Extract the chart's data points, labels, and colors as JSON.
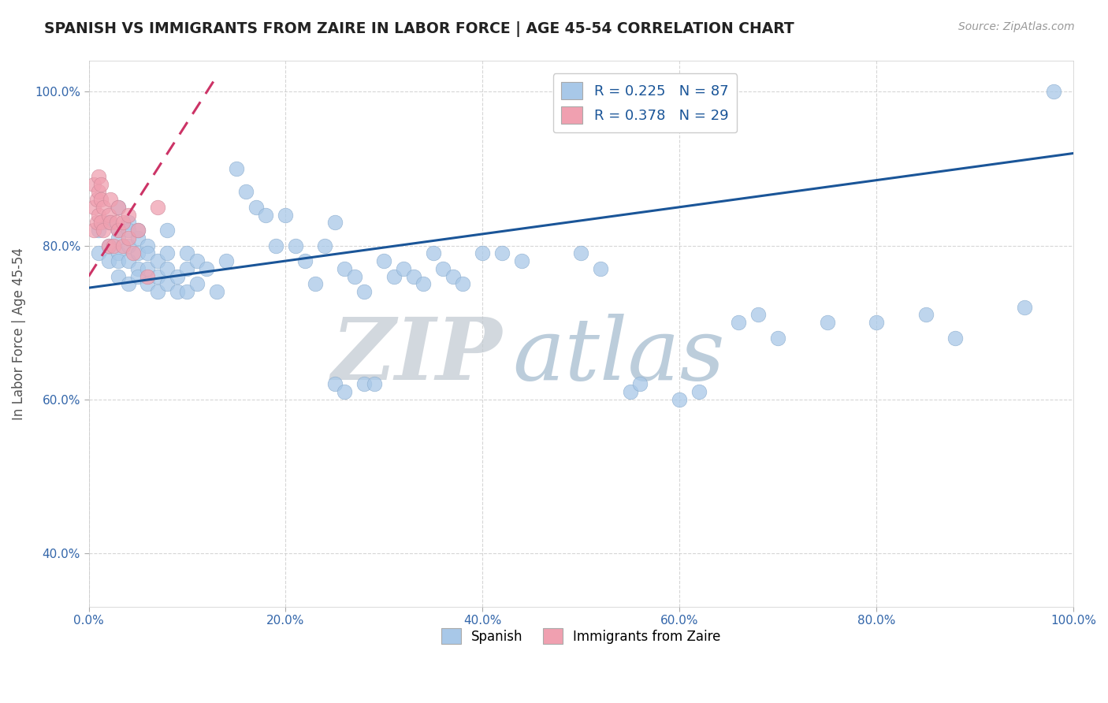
{
  "title": "SPANISH VS IMMIGRANTS FROM ZAIRE IN LABOR FORCE | AGE 45-54 CORRELATION CHART",
  "source": "Source: ZipAtlas.com",
  "ylabel": "In Labor Force | Age 45-54",
  "xlim": [
    0,
    1
  ],
  "ylim": [
    0.33,
    1.04
  ],
  "xticks": [
    0.0,
    0.2,
    0.4,
    0.6,
    0.8,
    1.0
  ],
  "yticks": [
    0.4,
    0.6,
    0.8,
    1.0
  ],
  "xtick_labels": [
    "0.0%",
    "20.0%",
    "40.0%",
    "60.0%",
    "80.0%",
    "100.0%"
  ],
  "ytick_labels": [
    "40.0%",
    "60.0%",
    "80.0%",
    "100.0%"
  ],
  "r_blue": 0.225,
  "n_blue": 87,
  "r_pink": 0.378,
  "n_pink": 29,
  "blue_color": "#a8c8e8",
  "pink_color": "#f0a0b0",
  "trend_blue_color": "#1a5598",
  "trend_pink_color": "#cc3366",
  "watermark_zip": "ZIP",
  "watermark_atlas": "atlas",
  "watermark_zip_color": "#c0c8d0",
  "watermark_atlas_color": "#a0b8cc",
  "legend_label_blue": "Spanish",
  "legend_label_pink": "Immigrants from Zaire",
  "blue_scatter_x": [
    0.01,
    0.01,
    0.02,
    0.02,
    0.02,
    0.03,
    0.03,
    0.03,
    0.03,
    0.03,
    0.03,
    0.04,
    0.04,
    0.04,
    0.04,
    0.04,
    0.05,
    0.05,
    0.05,
    0.05,
    0.05,
    0.06,
    0.06,
    0.06,
    0.06,
    0.07,
    0.07,
    0.07,
    0.08,
    0.08,
    0.08,
    0.08,
    0.09,
    0.09,
    0.1,
    0.1,
    0.1,
    0.11,
    0.11,
    0.12,
    0.13,
    0.14,
    0.15,
    0.16,
    0.17,
    0.18,
    0.19,
    0.2,
    0.21,
    0.22,
    0.23,
    0.24,
    0.25,
    0.26,
    0.27,
    0.28,
    0.3,
    0.31,
    0.32,
    0.33,
    0.34,
    0.35,
    0.36,
    0.37,
    0.38,
    0.4,
    0.42,
    0.44,
    0.5,
    0.52,
    0.55,
    0.56,
    0.6,
    0.62,
    0.66,
    0.68,
    0.7,
    0.75,
    0.8,
    0.85,
    0.88,
    0.95,
    0.98,
    0.25,
    0.26,
    0.28,
    0.29
  ],
  "blue_scatter_y": [
    0.82,
    0.79,
    0.83,
    0.8,
    0.78,
    0.85,
    0.82,
    0.81,
    0.79,
    0.78,
    0.76,
    0.83,
    0.8,
    0.78,
    0.75,
    0.82,
    0.81,
    0.79,
    0.77,
    0.76,
    0.82,
    0.8,
    0.79,
    0.77,
    0.75,
    0.78,
    0.76,
    0.74,
    0.79,
    0.77,
    0.75,
    0.82,
    0.76,
    0.74,
    0.79,
    0.77,
    0.74,
    0.78,
    0.75,
    0.77,
    0.74,
    0.78,
    0.9,
    0.87,
    0.85,
    0.84,
    0.8,
    0.84,
    0.8,
    0.78,
    0.75,
    0.8,
    0.83,
    0.77,
    0.76,
    0.74,
    0.78,
    0.76,
    0.77,
    0.76,
    0.75,
    0.79,
    0.77,
    0.76,
    0.75,
    0.79,
    0.79,
    0.78,
    0.79,
    0.77,
    0.61,
    0.62,
    0.6,
    0.61,
    0.7,
    0.71,
    0.68,
    0.7,
    0.7,
    0.71,
    0.68,
    0.72,
    1.0,
    0.62,
    0.61,
    0.62,
    0.62
  ],
  "pink_scatter_x": [
    0.005,
    0.005,
    0.005,
    0.008,
    0.008,
    0.01,
    0.01,
    0.01,
    0.012,
    0.012,
    0.012,
    0.015,
    0.015,
    0.02,
    0.02,
    0.022,
    0.022,
    0.025,
    0.028,
    0.03,
    0.03,
    0.035,
    0.035,
    0.04,
    0.04,
    0.045,
    0.05,
    0.06,
    0.07
  ],
  "pink_scatter_y": [
    0.82,
    0.85,
    0.88,
    0.83,
    0.86,
    0.84,
    0.87,
    0.89,
    0.83,
    0.86,
    0.88,
    0.82,
    0.85,
    0.84,
    0.8,
    0.83,
    0.86,
    0.8,
    0.83,
    0.82,
    0.85,
    0.8,
    0.83,
    0.81,
    0.84,
    0.79,
    0.82,
    0.76,
    0.85
  ],
  "blue_trend_x": [
    0.0,
    1.0
  ],
  "blue_trend_y_start": 0.745,
  "blue_trend_y_end": 0.92,
  "pink_trend_x": [
    0.0,
    0.13
  ],
  "pink_trend_y_start": 0.76,
  "pink_trend_y_end": 1.02
}
